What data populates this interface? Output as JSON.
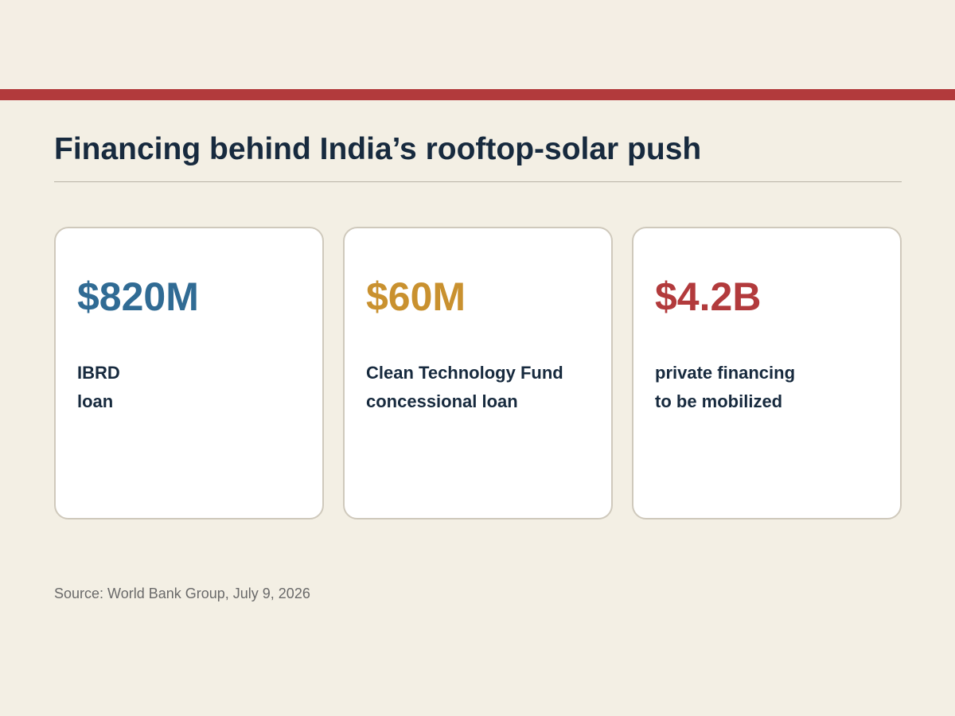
{
  "colors": {
    "background": "#f3efe4",
    "accent_stripe": "#b23a3c",
    "title_text": "#172a3e",
    "card_text": "#172a3e",
    "source_text": "#6a6a6a"
  },
  "header": {
    "title": "Financing behind India’s rooftop-solar push"
  },
  "cards": [
    {
      "value": "$820M",
      "value_color": "#306b94",
      "label_lines": [
        "IBRD",
        "loan"
      ]
    },
    {
      "value": "$60M",
      "value_color": "#c9912f",
      "label_lines": [
        "Clean Technology Fund",
        "concessional loan"
      ]
    },
    {
      "value": "$4.2B",
      "value_color": "#b23a3c",
      "label_lines": [
        "private financing",
        "to be mobilized"
      ]
    }
  ],
  "footer": {
    "source": "Source: World Bank Group, July 9, 2026"
  }
}
